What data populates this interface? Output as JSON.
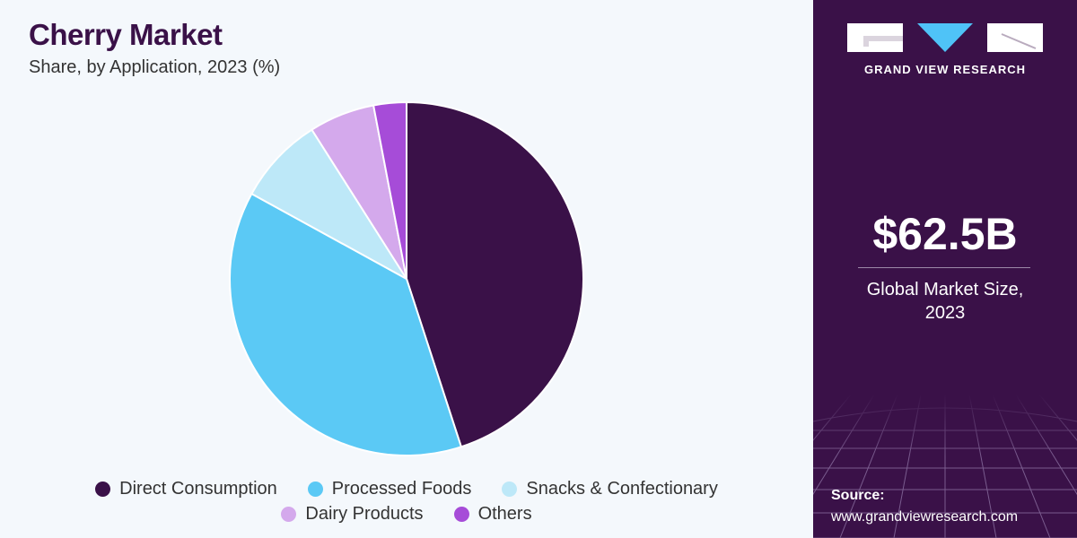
{
  "header": {
    "title": "Cherry Market",
    "subtitle": "Share, by Application, 2023 (%)"
  },
  "chart_data": {
    "type": "pie",
    "categories": [
      "Direct Consumption",
      "Processed Foods",
      "Snacks & Confectionary",
      "Dairy Products",
      "Others"
    ],
    "values": [
      45,
      38,
      8,
      6,
      3
    ],
    "colors": [
      "#3a1148",
      "#5bc9f5",
      "#bde8f8",
      "#d4a9ec",
      "#a64cd8"
    ],
    "legend_position": "bottom"
  },
  "sidebar": {
    "brand": "GRAND VIEW RESEARCH",
    "market_size_value": "$62.5B",
    "market_size_label_line1": "Global Market Size,",
    "market_size_label_line2": "2023",
    "source_label": "Source:",
    "source_url": "www.grandviewresearch.com"
  }
}
